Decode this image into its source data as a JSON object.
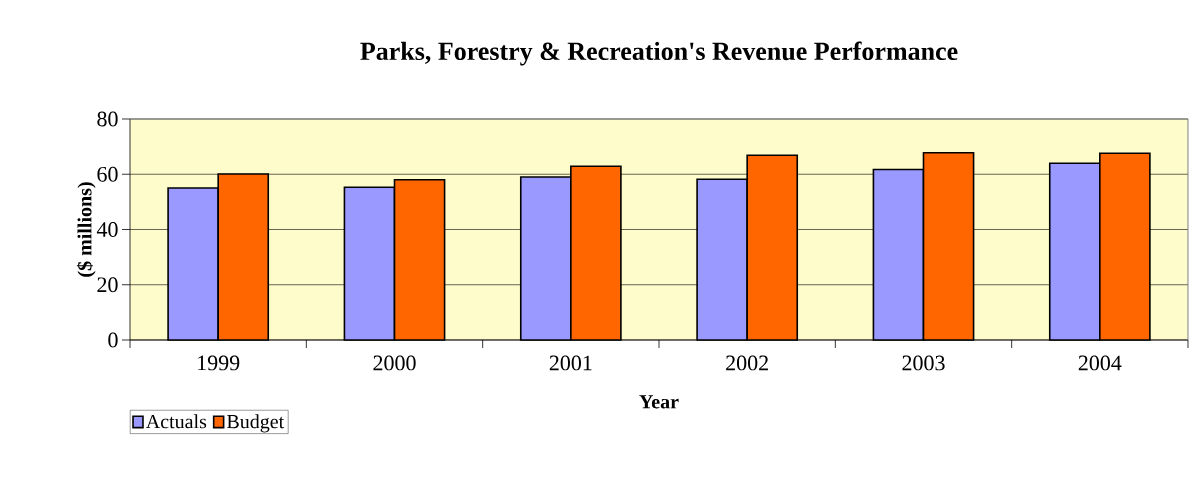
{
  "chart_data": {
    "type": "bar",
    "title": "Parks, Forestry & Recreation's Revenue Performance",
    "xlabel": "Year",
    "ylabel": "($ millions)",
    "categories": [
      "1999",
      "2000",
      "2001",
      "2002",
      "2003",
      "2004"
    ],
    "series": [
      {
        "name": "Actuals",
        "color": "#9999ff",
        "values": [
          55.0,
          55.3,
          59.0,
          58.2,
          61.7,
          64.0
        ]
      },
      {
        "name": "Budget",
        "color": "#ff6600",
        "values": [
          60.1,
          58.0,
          62.9,
          66.9,
          67.8,
          67.6
        ]
      }
    ],
    "ylim": [
      0,
      80
    ],
    "yticks": [
      0,
      20,
      40,
      60,
      80
    ],
    "grid": "y",
    "legend": "bottom left"
  }
}
